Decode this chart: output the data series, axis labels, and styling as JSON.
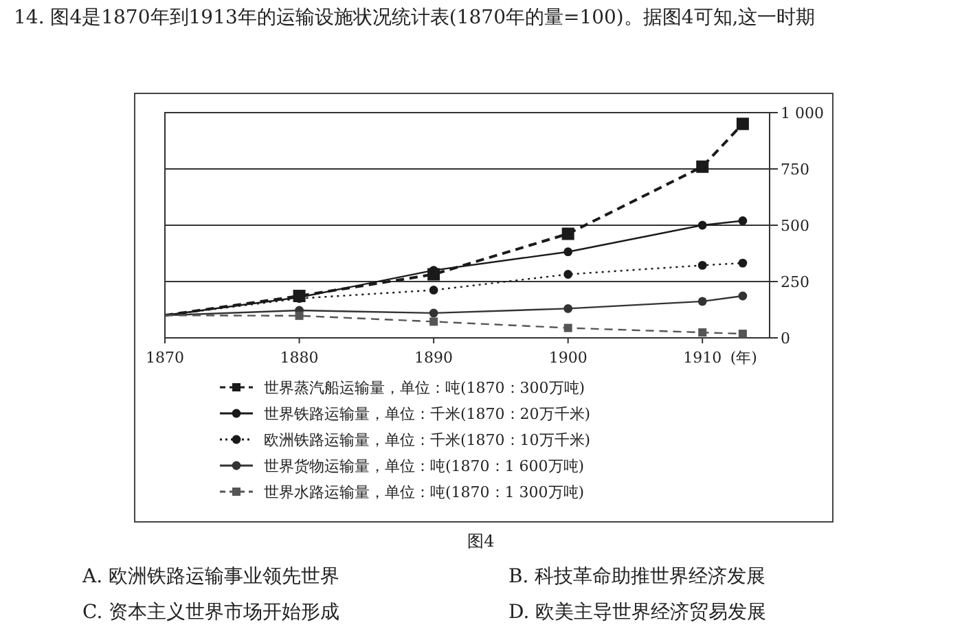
{
  "chart_data": {
    "type": "line",
    "title": "14. 图4是1870年到1913年的运输设施状况统计表(1870年的量=100)。据图4可知,这一时期",
    "xlabel": "(年)",
    "x": [
      1870,
      1880,
      1890,
      1900,
      1910,
      1913
    ],
    "xlim": [
      1870,
      1915
    ],
    "xticks": [
      1870,
      1880,
      1890,
      1900,
      1910
    ],
    "ylim": [
      0,
      1000
    ],
    "yticks": [
      0,
      250,
      500,
      750,
      {
        "value": 1000,
        "label": "1 000"
      }
    ],
    "grid": "y",
    "legend": "bottom",
    "series": [
      {
        "name": "世界蒸汽船运输量，单位：吨(1870：300万吨)",
        "color": "#1a1a1a",
        "line_style": "dashed",
        "marker": "square",
        "values": [
          100,
          186,
          282,
          462,
          760,
          950
        ]
      },
      {
        "name": "世界铁路运输量，单位：千米(1870：20万千米)",
        "color": "#1a1a1a",
        "line_style": "solid",
        "marker": "circle",
        "values": [
          100,
          180,
          300,
          382,
          500,
          520
        ]
      },
      {
        "name": "欧洲铁路运输量，单位：千米(1870：10万千米)",
        "color": "#1a1a1a",
        "line_style": "dotted",
        "marker": "circle",
        "values": [
          100,
          175,
          212,
          282,
          322,
          332
        ]
      },
      {
        "name": "世界货物运输量，单位：吨(1870：1 600万吨)",
        "color": "#333333",
        "line_style": "solid",
        "marker": "circle",
        "values": [
          100,
          122,
          110,
          130,
          162,
          186
        ]
      },
      {
        "name": "世界水路运输量，单位：吨(1870：1 300万吨)",
        "color": "#555555",
        "line_style": "dashed",
        "marker": "square",
        "values": [
          100,
          98,
          72,
          44,
          24,
          18
        ]
      }
    ],
    "annotations": [
      "图4",
      "A. 欧洲铁路运输事业领先世界",
      "B. 科技革命助推世界经济发展",
      "C. 资本主义世界市场开始形成",
      "D. 欧美主导世界经济贸易发展"
    ]
  }
}
